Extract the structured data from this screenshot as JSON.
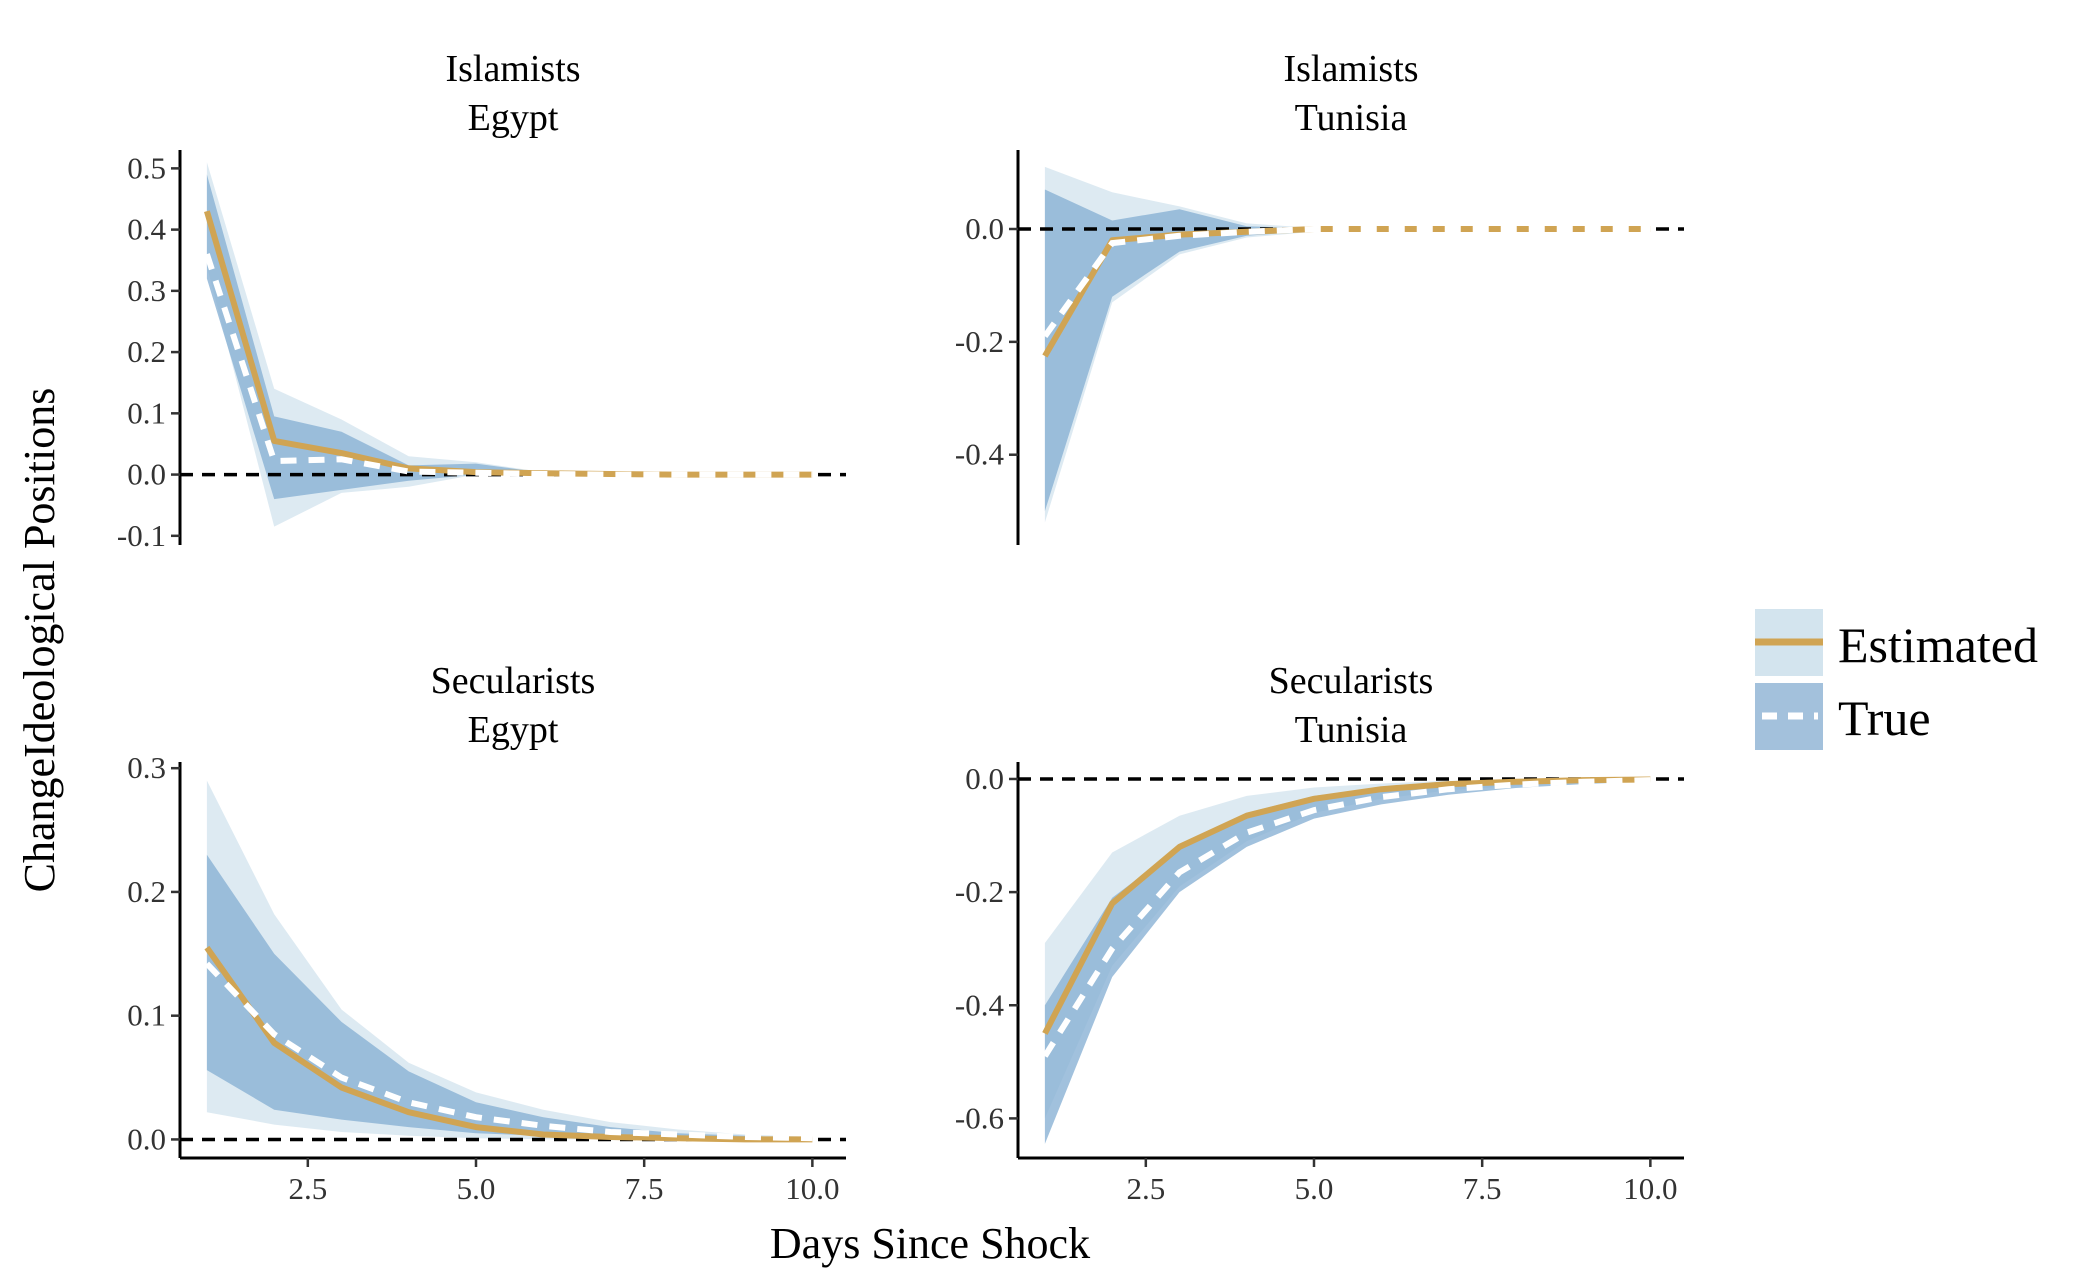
{
  "chart_data": {
    "type": "line",
    "x_label": "Days Since Shock",
    "y_label": "ChangeIdeological Positions",
    "colors": {
      "estimated_line": "#d0a453",
      "estimated_band": "#d3e4ee",
      "true_line": "#ffffff",
      "true_band": "#87afd3",
      "zero_line": "#000000"
    },
    "legend": {
      "position": "right",
      "items": [
        {
          "label": "Estimated",
          "swatch": "estimated"
        },
        {
          "label": "True",
          "swatch": "true"
        }
      ]
    },
    "x": [
      1,
      2,
      3,
      4,
      5,
      6,
      7,
      8,
      9,
      10
    ],
    "panels": [
      {
        "title_line1": "Islamists",
        "title_line2": "Egypt",
        "xlim": [
          0.6,
          10.5
        ],
        "ylim": [
          -0.115,
          0.53
        ],
        "x_ticks": [
          2.5,
          5.0,
          7.5,
          10.0
        ],
        "x_ticklabels": [
          "2.5",
          "5.0",
          "7.5",
          "10.0"
        ],
        "y_ticks": [
          -0.1,
          0.0,
          0.1,
          0.2,
          0.3,
          0.4,
          0.5
        ],
        "y_ticklabels": [
          "-0.1",
          "0.0",
          "0.1",
          "0.2",
          "0.3",
          "0.4",
          "0.5"
        ],
        "show_x_ticklabels": false,
        "estimated": [
          0.43,
          0.055,
          0.035,
          0.01,
          0.004,
          0.002,
          0.001,
          0.0,
          0.0,
          0.0
        ],
        "estimated_lower": [
          0.34,
          -0.085,
          -0.03,
          -0.02,
          0.0,
          0.0,
          0.0,
          0.0,
          0.0,
          0.0
        ],
        "estimated_upper": [
          0.51,
          0.14,
          0.09,
          0.03,
          0.02,
          0.004,
          0.002,
          0.001,
          0.0,
          0.0
        ],
        "true": [
          0.36,
          0.022,
          0.025,
          0.005,
          0.003,
          0.001,
          0.0,
          0.0,
          0.0,
          0.0
        ],
        "true_lower": [
          0.32,
          -0.04,
          -0.025,
          -0.01,
          0.0,
          0.0,
          0.0,
          0.0,
          0.0,
          0.0
        ],
        "true_upper": [
          0.49,
          0.095,
          0.07,
          0.015,
          0.018,
          0.003,
          0.001,
          0.0,
          0.0,
          0.0
        ]
      },
      {
        "title_line1": "Islamists",
        "title_line2": "Tunisia",
        "xlim": [
          0.6,
          10.5
        ],
        "ylim": [
          -0.56,
          0.14
        ],
        "x_ticks": [
          2.5,
          5.0,
          7.5,
          10.0
        ],
        "x_ticklabels": [
          "2.5",
          "5.0",
          "7.5",
          "10.0"
        ],
        "y_ticks": [
          -0.4,
          -0.2,
          0.0
        ],
        "y_ticklabels": [
          "-0.4",
          "-0.2",
          "0.0"
        ],
        "show_x_ticklabels": false,
        "estimated": [
          -0.225,
          -0.02,
          -0.01,
          -0.005,
          0.0,
          0.0,
          0.0,
          0.0,
          0.0,
          0.0
        ],
        "estimated_lower": [
          -0.52,
          -0.13,
          -0.045,
          -0.015,
          -0.005,
          0.0,
          0.0,
          0.0,
          0.0,
          0.0
        ],
        "estimated_upper": [
          0.11,
          0.065,
          0.04,
          0.01,
          0.002,
          0.0,
          0.0,
          0.0,
          0.0,
          0.0
        ],
        "true": [
          -0.19,
          -0.025,
          -0.012,
          -0.005,
          0.0,
          0.0,
          0.0,
          0.0,
          0.0,
          0.0
        ],
        "true_lower": [
          -0.5,
          -0.12,
          -0.04,
          -0.012,
          -0.003,
          0.0,
          0.0,
          0.0,
          0.0,
          0.0
        ],
        "true_upper": [
          0.07,
          0.015,
          0.035,
          0.005,
          0.001,
          0.0,
          0.0,
          0.0,
          0.0,
          0.0
        ]
      },
      {
        "title_line1": "Secularists",
        "title_line2": "Egypt",
        "xlim": [
          0.6,
          10.5
        ],
        "ylim": [
          -0.015,
          0.305
        ],
        "x_ticks": [
          2.5,
          5.0,
          7.5,
          10.0
        ],
        "x_ticklabels": [
          "2.5",
          "5.0",
          "7.5",
          "10.0"
        ],
        "y_ticks": [
          0.0,
          0.1,
          0.2,
          0.3
        ],
        "y_ticklabels": [
          "0.0",
          "0.1",
          "0.2",
          "0.3"
        ],
        "show_x_ticklabels": true,
        "estimated": [
          0.155,
          0.078,
          0.042,
          0.022,
          0.01,
          0.004,
          0.002,
          0.001,
          0.0,
          0.0
        ],
        "estimated_lower": [
          0.022,
          0.012,
          0.006,
          0.003,
          0.001,
          0.0,
          0.0,
          0.0,
          0.0,
          0.0
        ],
        "estimated_upper": [
          0.29,
          0.182,
          0.105,
          0.062,
          0.038,
          0.024,
          0.014,
          0.008,
          0.004,
          0.002
        ],
        "true": [
          0.142,
          0.085,
          0.05,
          0.03,
          0.018,
          0.011,
          0.006,
          0.004,
          0.002,
          0.001
        ],
        "true_lower": [
          0.056,
          0.024,
          0.016,
          0.01,
          0.005,
          0.003,
          0.001,
          0.0,
          0.0,
          0.0
        ],
        "true_upper": [
          0.23,
          0.15,
          0.095,
          0.055,
          0.03,
          0.018,
          0.01,
          0.005,
          0.003,
          0.001
        ]
      },
      {
        "title_line1": "Secularists",
        "title_line2": "Tunisia",
        "xlim": [
          0.6,
          10.5
        ],
        "ylim": [
          -0.67,
          0.03
        ],
        "x_ticks": [
          2.5,
          5.0,
          7.5,
          10.0
        ],
        "x_ticklabels": [
          "2.5",
          "5.0",
          "7.5",
          "10.0"
        ],
        "y_ticks": [
          -0.6,
          -0.4,
          -0.2,
          0.0
        ],
        "y_ticklabels": [
          "-0.6",
          "-0.4",
          "-0.2",
          "0.0"
        ],
        "show_x_ticklabels": true,
        "estimated": [
          -0.45,
          -0.22,
          -0.12,
          -0.065,
          -0.035,
          -0.018,
          -0.009,
          -0.005,
          -0.002,
          -0.001
        ],
        "estimated_lower": [
          -0.6,
          -0.33,
          -0.19,
          -0.11,
          -0.06,
          -0.035,
          -0.02,
          -0.012,
          -0.006,
          -0.003
        ],
        "estimated_upper": [
          -0.29,
          -0.13,
          -0.065,
          -0.03,
          -0.015,
          -0.008,
          -0.003,
          -0.002,
          -0.001,
          0.0
        ],
        "true": [
          -0.49,
          -0.3,
          -0.165,
          -0.095,
          -0.055,
          -0.032,
          -0.018,
          -0.01,
          -0.005,
          -0.002
        ],
        "true_lower": [
          -0.645,
          -0.35,
          -0.2,
          -0.12,
          -0.07,
          -0.045,
          -0.028,
          -0.016,
          -0.009,
          -0.004
        ],
        "true_upper": [
          -0.4,
          -0.21,
          -0.12,
          -0.06,
          -0.03,
          -0.016,
          -0.008,
          -0.004,
          -0.002,
          -0.001
        ]
      }
    ]
  }
}
